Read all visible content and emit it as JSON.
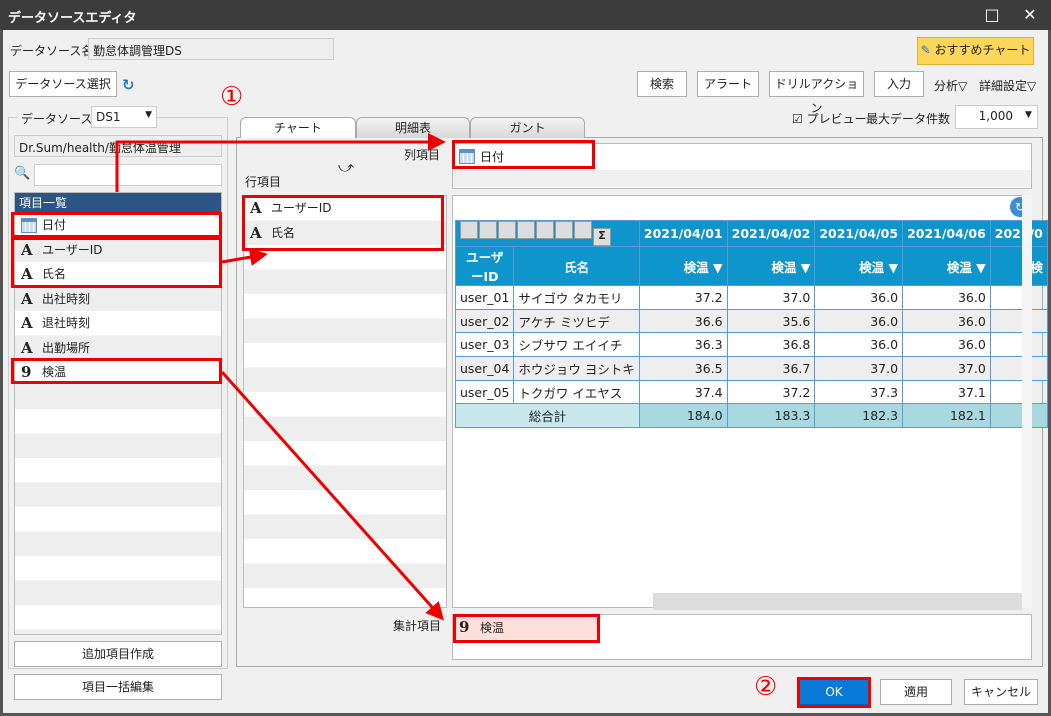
{
  "window": {
    "title": "データソースエディタ",
    "maximize": "□",
    "close": "✕"
  },
  "header": {
    "ds_name_label": "データソース名",
    "ds_name_value": "勤怠体調管理DS",
    "ds_select_button": "データソース選択",
    "recommend_button": "おすすめチャート"
  },
  "toolbar": {
    "search": "検索",
    "alert": "アラート",
    "drill": "ドリルアクション",
    "input": "入力",
    "analysis": "分析▽",
    "details": "詳細設定▽",
    "preview_label": "プレビュー",
    "preview_checked": true,
    "max_rows_label": "最大データ件数",
    "max_rows_value": "1,000"
  },
  "left": {
    "ds_label": "データソース",
    "ds_value": "DS1",
    "path": "Dr.Sum/health/勤怠体温管理",
    "search_placeholder": "",
    "list_header": "項目一覧",
    "items": [
      {
        "icon": "calendar-icon",
        "label": "日付"
      },
      {
        "icon": "text-field-icon",
        "label": "ユーザーID"
      },
      {
        "icon": "text-field-icon",
        "label": "氏名"
      },
      {
        "icon": "text-field-icon",
        "label": "出社時刻"
      },
      {
        "icon": "text-field-icon",
        "label": "退社時刻"
      },
      {
        "icon": "text-field-icon",
        "label": "出勤場所"
      },
      {
        "icon": "numeric-field-icon",
        "label": "検温"
      }
    ],
    "add_item_button": "追加項目作成",
    "bulk_edit_button": "項目一括編集"
  },
  "tabs": [
    {
      "label": "チャート",
      "active": true
    },
    {
      "label": "明細表"
    },
    {
      "label": "ガント"
    }
  ],
  "center": {
    "col_label": "列項目",
    "row_label": "行項目",
    "agg_label": "集計項目",
    "col_items": [
      "日付"
    ],
    "row_items": [
      "ユーザーID",
      "氏名"
    ],
    "agg_items": [
      "検温"
    ]
  },
  "table": {
    "dates": [
      "2021/04/01",
      "2021/04/02",
      "2021/04/05",
      "2021/04/06",
      "2021/0"
    ],
    "headers": [
      "ユーザーID",
      "氏名"
    ],
    "measure": "検温 ▼",
    "measure_cut": "検",
    "rows": [
      [
        "user_01",
        "サイゴウ タカモリ",
        "37.2",
        "37.0",
        "36.0",
        "36.0"
      ],
      [
        "user_02",
        "アケチ ミツヒデ",
        "36.6",
        "35.6",
        "36.0",
        "36.0"
      ],
      [
        "user_03",
        "シブサワ エイイチ",
        "36.3",
        "36.8",
        "36.0",
        "36.0"
      ],
      [
        "user_04",
        "ホウジョウ ヨシトキ",
        "36.5",
        "36.7",
        "37.0",
        "37.0"
      ],
      [
        "user_05",
        "トクガワ イエヤス",
        "37.4",
        "37.2",
        "37.3",
        "37.1"
      ]
    ],
    "total_label": "総合計",
    "totals": [
      "184.0",
      "183.3",
      "182.3",
      "182.1"
    ]
  },
  "footer": {
    "ok": "OK",
    "apply": "適用",
    "cancel": "キャンセル"
  },
  "annotations": {
    "step1": "①",
    "step2": "②",
    "color": "#e00000"
  }
}
